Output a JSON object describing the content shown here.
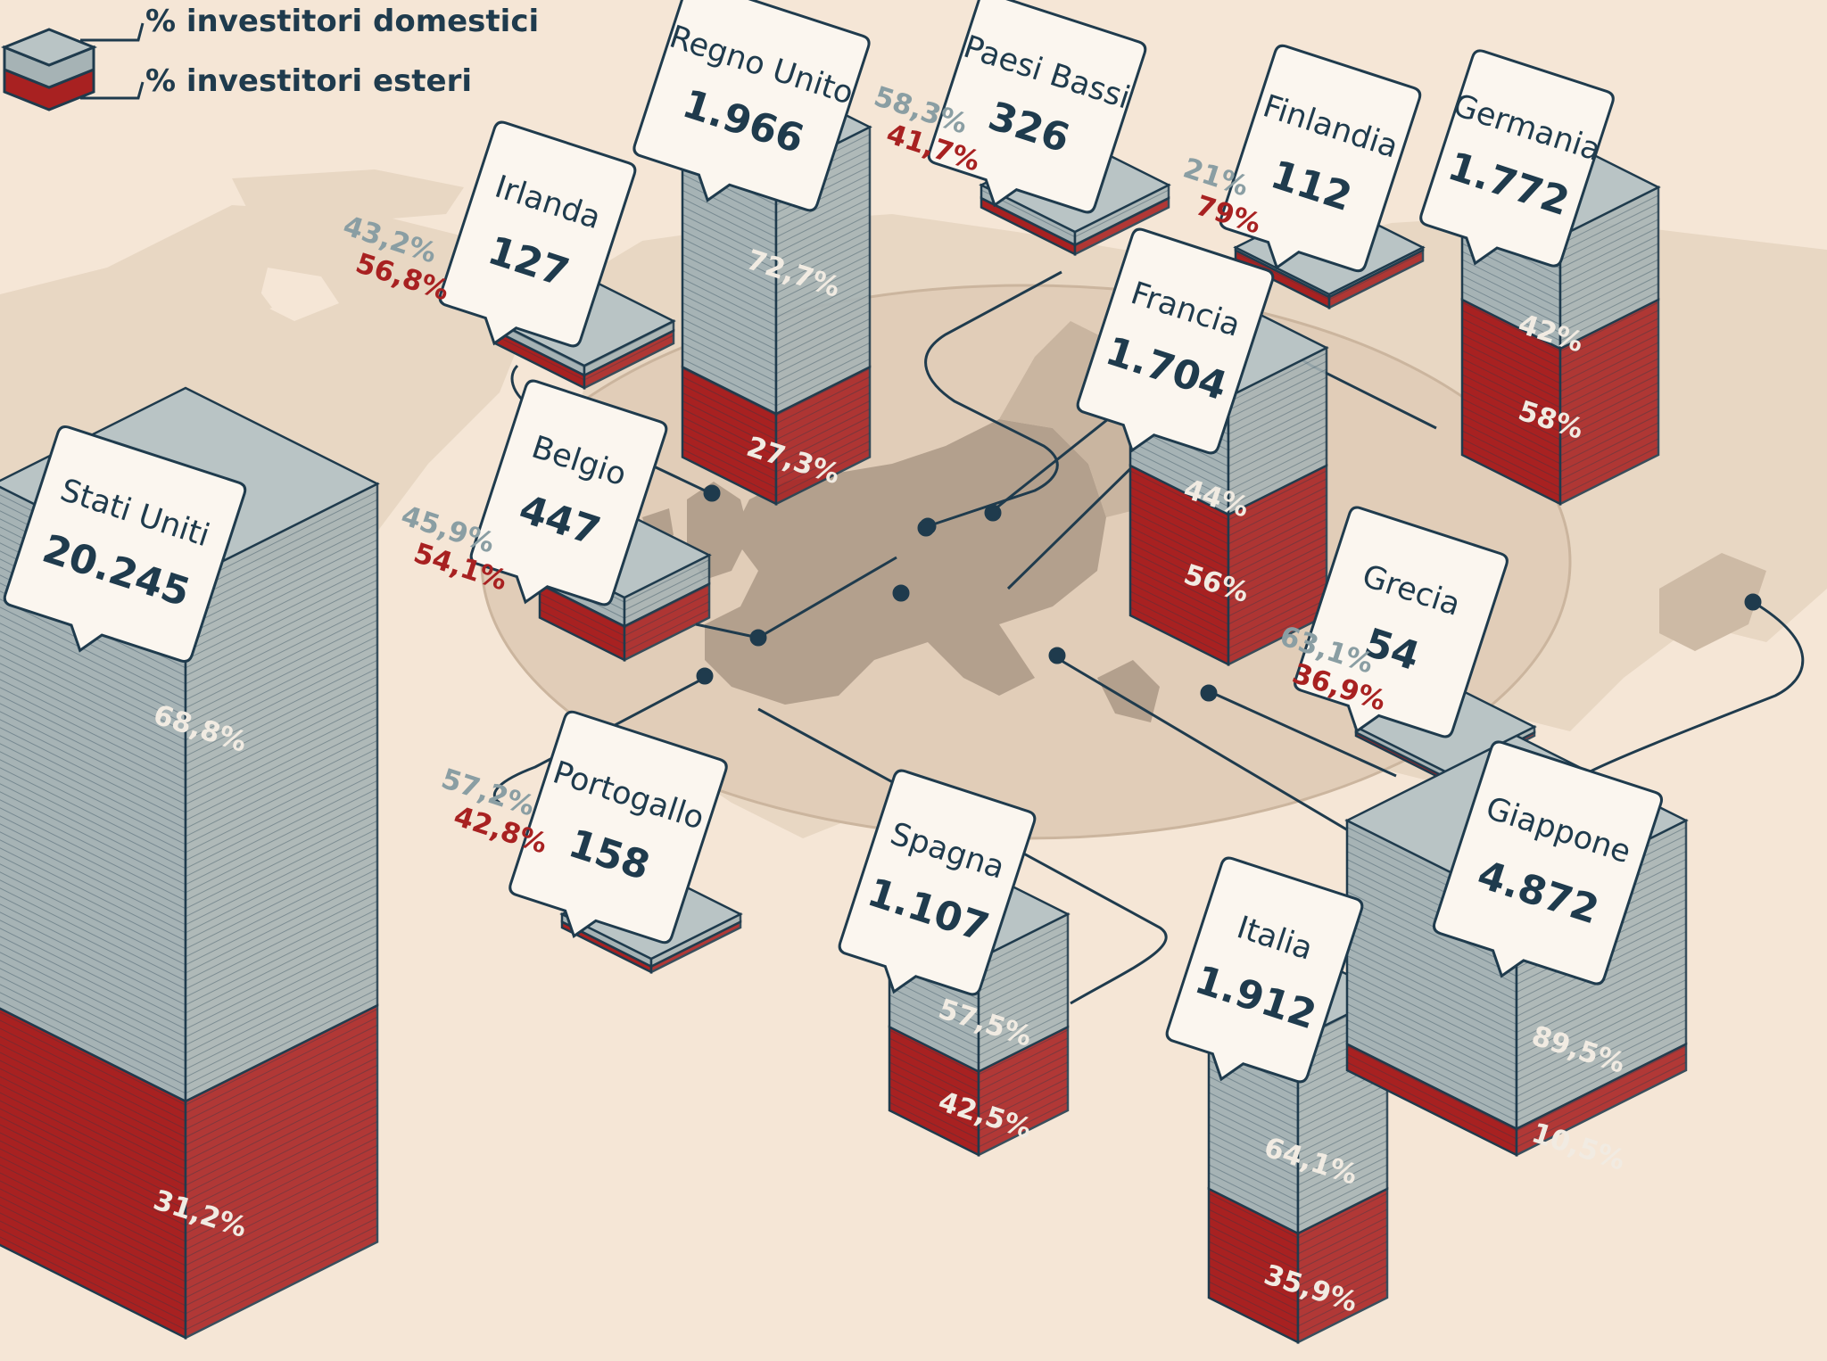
{
  "colors": {
    "background": "#f5e6d6",
    "land": "#e8d7c3",
    "europe": "#b3a08d",
    "domestic": "#a6b3b5",
    "foreign": "#a82121",
    "text": "#1f3b4d",
    "line": "#1f3b4d"
  },
  "legend": {
    "domestic": "% investitori domestici",
    "foreign": "% investitori esteri"
  },
  "chart_data": {
    "type": "bar",
    "series": [
      {
        "name": "% investitori domestici",
        "color": "#a6b3b5"
      },
      {
        "name": "% investitori esteri",
        "color": "#a82121"
      }
    ],
    "countries": [
      {
        "name": "Stati Uniti",
        "value": "20.245",
        "domestic": "68,8%",
        "foreign": "31,2%"
      },
      {
        "name": "Regno Unito",
        "value": "1.966",
        "domestic": "72,7%",
        "foreign": "27,3%"
      },
      {
        "name": "Irlanda",
        "value": "127",
        "domestic": "43,2%",
        "foreign": "56,8%"
      },
      {
        "name": "Paesi Bassi",
        "value": "326",
        "domestic": "58,3%",
        "foreign": "41,7%"
      },
      {
        "name": "Finlandia",
        "value": "112",
        "domestic": "21%",
        "foreign": "79%"
      },
      {
        "name": "Germania",
        "value": "1.772",
        "domestic": "42%",
        "foreign": "58%"
      },
      {
        "name": "Francia",
        "value": "1.704",
        "domestic": "44%",
        "foreign": "56%"
      },
      {
        "name": "Belgio",
        "value": "447",
        "domestic": "45,9%",
        "foreign": "54,1%"
      },
      {
        "name": "Grecia",
        "value": "54",
        "domestic": "63,1%",
        "foreign": "36,9%"
      },
      {
        "name": "Portogallo",
        "value": "158",
        "domestic": "57,2%",
        "foreign": "42,8%"
      },
      {
        "name": "Spagna",
        "value": "1.107",
        "domestic": "57,5%",
        "foreign": "42,5%"
      },
      {
        "name": "Italia",
        "value": "1.912",
        "domestic": "64,1%",
        "foreign": "35,9%"
      },
      {
        "name": "Giappone",
        "value": "4.872",
        "domestic": "89,5%",
        "foreign": "10,5%"
      }
    ]
  }
}
